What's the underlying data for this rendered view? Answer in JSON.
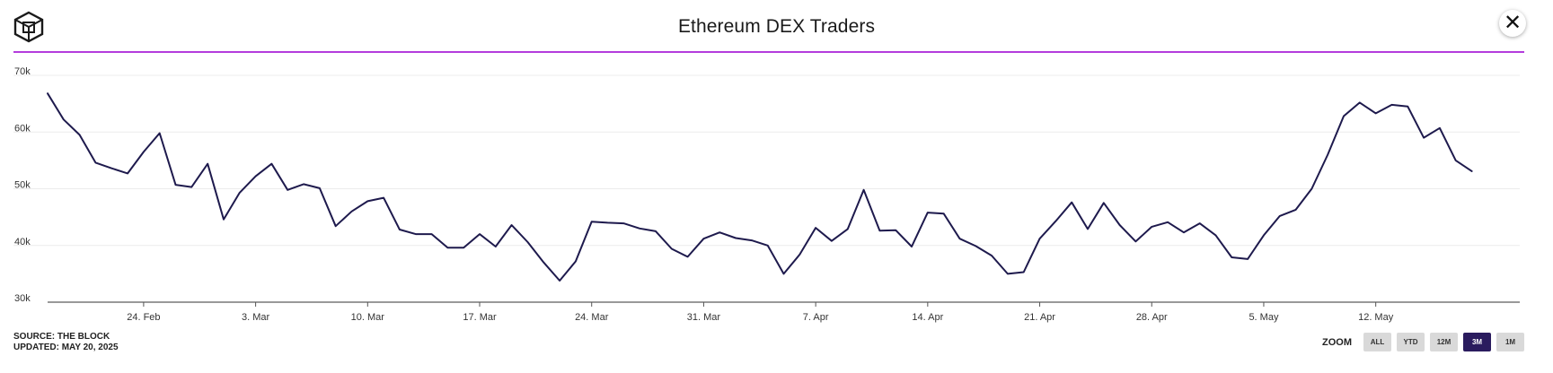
{
  "header": {
    "title": "Ethereum DEX Traders",
    "close_label": "✕"
  },
  "footer": {
    "source": "SOURCE: THE BLOCK",
    "updated": "UPDATED: MAY 20, 2025"
  },
  "zoom": {
    "label": "ZOOM",
    "options": [
      "ALL",
      "YTD",
      "12M",
      "3M",
      "1M"
    ],
    "active": "3M"
  },
  "colors": {
    "line": "#1e1a4d",
    "accent": "#b43cdc",
    "active_zoom": "#2a1b5e"
  },
  "chart_data": {
    "type": "line",
    "title": "Ethereum DEX Traders",
    "xlabel": "",
    "ylabel": "",
    "ylim": [
      30000,
      70000
    ],
    "yticks": [
      30000,
      40000,
      50000,
      60000,
      70000
    ],
    "ytick_labels": [
      "30k",
      "40k",
      "50k",
      "60k",
      "70k"
    ],
    "xlim_day": [
      0,
      92
    ],
    "xticks": [
      {
        "day": 6,
        "label": "24. Feb"
      },
      {
        "day": 13,
        "label": "3. Mar"
      },
      {
        "day": 20,
        "label": "10. Mar"
      },
      {
        "day": 27,
        "label": "17. Mar"
      },
      {
        "day": 34,
        "label": "24. Mar"
      },
      {
        "day": 41,
        "label": "31. Mar"
      },
      {
        "day": 48,
        "label": "7. Apr"
      },
      {
        "day": 55,
        "label": "14. Apr"
      },
      {
        "day": 62,
        "label": "21. Apr"
      },
      {
        "day": 69,
        "label": "28. Apr"
      },
      {
        "day": 76,
        "label": "5. May"
      },
      {
        "day": 83,
        "label": "12. May"
      }
    ],
    "grid": true,
    "series": [
      {
        "name": "Ethereum DEX Traders",
        "start_date": "2025-02-18",
        "values": [
          66800,
          62200,
          59500,
          54600,
          53600,
          52700,
          56500,
          59800,
          50700,
          50300,
          54400,
          44600,
          49300,
          52200,
          54400,
          49800,
          50800,
          50100,
          43400,
          46000,
          47800,
          48400,
          42800,
          42000,
          42000,
          39600,
          39600,
          42000,
          39800,
          43600,
          40600,
          37000,
          33800,
          37200,
          44200,
          44000,
          43900,
          43000,
          42500,
          39400,
          38000,
          41200,
          42300,
          41300,
          40900,
          40000,
          35000,
          38400,
          43100,
          40800,
          42900,
          49800,
          42600,
          42700,
          39800,
          45800,
          45600,
          41200,
          39900,
          38200,
          35000,
          35300,
          41200,
          44300,
          47600,
          42900,
          47500,
          43600,
          40700,
          43300,
          44100,
          42300,
          43900,
          41800,
          37900,
          37600,
          41800,
          45200,
          46300,
          50000,
          56000,
          62800,
          65200,
          63300,
          64800,
          64500,
          59000,
          60700,
          55000,
          53100
        ]
      }
    ]
  }
}
